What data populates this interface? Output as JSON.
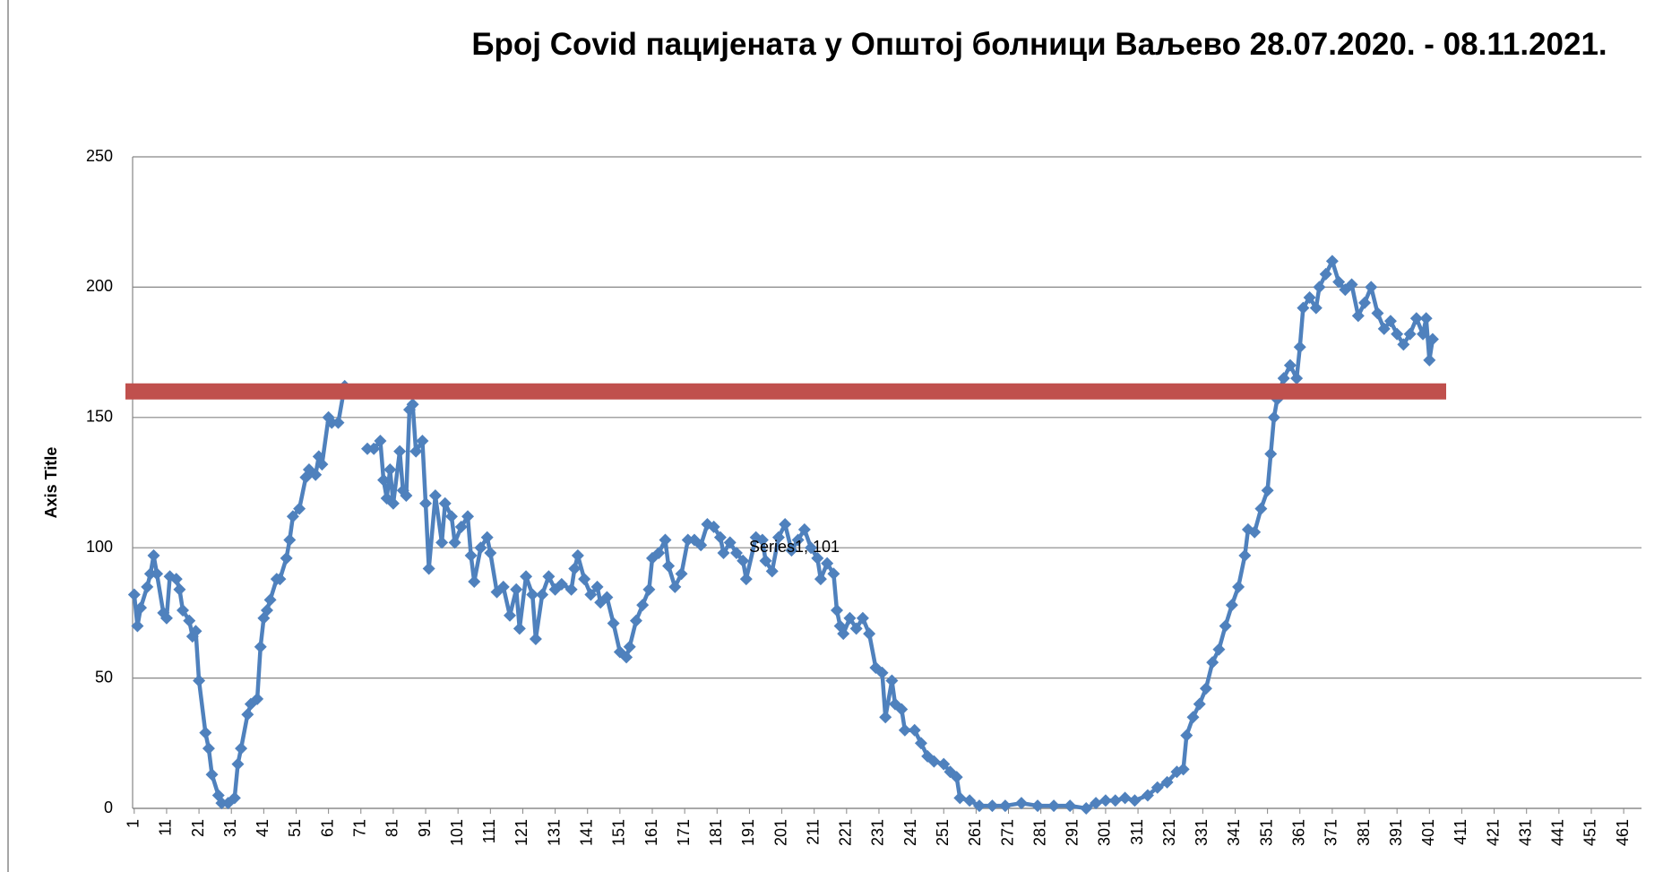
{
  "chart_data": {
    "type": "line",
    "title": "Број Covid пацијената у Општој болници Ваљево 28.07.2020. - 08.11.2021.",
    "y_label": "Axis Title",
    "annotation": "Series1, 101",
    "series": [
      {
        "name": "Series1",
        "color": "#4f81bd",
        "x": [
          1,
          2,
          3,
          5,
          6,
          7,
          8,
          10,
          11,
          12,
          14,
          15,
          16,
          18,
          19,
          20,
          21,
          23,
          24,
          25,
          27,
          28,
          30,
          32,
          33,
          34,
          36,
          37,
          39,
          40,
          41,
          42,
          43,
          45,
          46,
          48,
          49,
          50,
          52,
          54,
          55,
          57,
          58,
          59,
          61,
          62,
          64,
          66,
          70,
          73,
          75,
          77,
          78,
          79,
          80,
          81,
          83,
          84,
          85,
          86,
          87,
          88,
          90,
          91,
          92,
          94,
          96,
          97,
          99,
          100,
          102,
          104,
          105,
          106,
          108,
          110,
          111,
          113,
          115,
          117,
          119,
          120,
          122,
          124,
          125,
          127,
          129,
          131,
          133,
          136,
          137,
          138,
          140,
          142,
          144,
          145,
          147,
          149,
          151,
          153,
          154,
          156,
          158,
          160,
          161,
          163,
          165,
          166,
          168,
          170,
          172,
          174,
          176,
          178,
          180,
          182,
          183,
          185,
          187,
          189,
          190,
          193,
          195,
          196,
          198,
          200,
          202,
          204,
          206,
          208,
          210,
          212,
          213,
          215,
          217,
          218,
          219,
          220,
          222,
          224,
          226,
          228,
          230,
          232,
          233,
          235,
          236,
          238,
          239,
          242,
          244,
          246,
          248,
          251,
          253,
          255,
          256,
          259,
          262,
          266,
          270,
          275,
          280,
          285,
          290,
          295,
          298,
          301,
          304,
          307,
          310,
          314,
          317,
          320,
          323,
          325,
          326,
          328,
          330,
          332,
          334,
          336,
          338,
          340,
          342,
          344,
          345,
          347,
          349,
          351,
          352,
          353,
          354,
          356,
          358,
          360,
          361,
          362,
          364,
          366,
          367,
          369,
          371,
          373,
          375,
          377,
          379,
          381,
          383,
          385,
          387,
          389,
          391,
          393,
          395,
          397,
          399,
          400,
          401,
          402
        ],
        "values": [
          82,
          70,
          77,
          85,
          90,
          97,
          90,
          75,
          73,
          89,
          88,
          84,
          76,
          72,
          66,
          68,
          49,
          29,
          23,
          13,
          5,
          2,
          2,
          4,
          17,
          23,
          36,
          40,
          42,
          62,
          73,
          76,
          80,
          88,
          88,
          96,
          103,
          112,
          115,
          127,
          130,
          128,
          135,
          132,
          150,
          148,
          148,
          162,
          null,
          138,
          138,
          141,
          126,
          119,
          130,
          117,
          137,
          122,
          120,
          153,
          155,
          137,
          141,
          117,
          92,
          120,
          102,
          117,
          112,
          102,
          108,
          112,
          97,
          87,
          100,
          104,
          98,
          83,
          85,
          74,
          84,
          69,
          89,
          82,
          65,
          82,
          89,
          84,
          86,
          84,
          92,
          97,
          88,
          82,
          85,
          79,
          81,
          71,
          60,
          58,
          62,
          72,
          78,
          84,
          96,
          98,
          103,
          93,
          85,
          90,
          103,
          103,
          101,
          109,
          108,
          104,
          98,
          102,
          98,
          95,
          88,
          104,
          103,
          95,
          91,
          104,
          109,
          99,
          103,
          107,
          100,
          96,
          88,
          94,
          90,
          76,
          70,
          67,
          73,
          69,
          73,
          67,
          54,
          52,
          35,
          49,
          40,
          38,
          30,
          30,
          25,
          20,
          18,
          17,
          14,
          12,
          4,
          3,
          1,
          1,
          1,
          2,
          1,
          1,
          1,
          0,
          2,
          3,
          3,
          4,
          3,
          5,
          8,
          10,
          14,
          15,
          28,
          35,
          40,
          46,
          56,
          61,
          70,
          78,
          85,
          97,
          107,
          106,
          115,
          122,
          136,
          150,
          157,
          165,
          170,
          165,
          177,
          192,
          196,
          192,
          200,
          205,
          210,
          202,
          199,
          201,
          189,
          194,
          200,
          190,
          184,
          187,
          182,
          178,
          182,
          188,
          182,
          188,
          172,
          180
        ]
      }
    ],
    "reference_line": {
      "value": 160,
      "color": "#c0504d"
    },
    "xlim": [
      0.5,
      466.5
    ],
    "xticks": [
      1,
      11,
      21,
      31,
      41,
      51,
      61,
      71,
      81,
      91,
      101,
      111,
      121,
      131,
      141,
      151,
      161,
      171,
      181,
      191,
      201,
      211,
      221,
      231,
      241,
      251,
      261,
      271,
      281,
      291,
      301,
      311,
      321,
      331,
      341,
      351,
      361,
      371,
      381,
      391,
      401,
      411,
      421,
      431,
      441,
      451,
      461
    ],
    "ylim": [
      0,
      250
    ],
    "yticks": [
      0,
      50,
      100,
      150,
      200,
      250
    ],
    "grid": true
  }
}
